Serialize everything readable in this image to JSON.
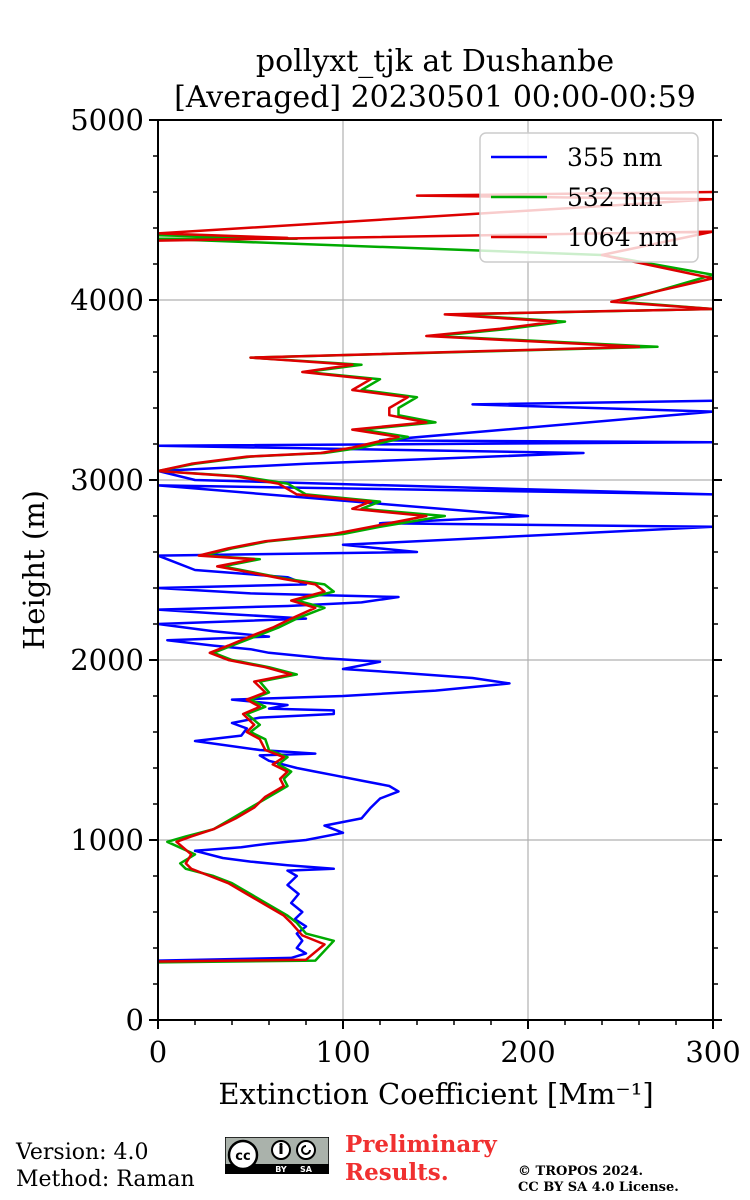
{
  "chart_data": {
    "type": "line",
    "title": "pollyxt_tjk at Dushanbe",
    "subtitle": "[Averaged] 20230501 00:00-00:59",
    "xlabel": "Extinction Coefficient [Mm⁻¹]",
    "ylabel": "Height (m)",
    "xlim": [
      0,
      300
    ],
    "ylim": [
      0,
      5000
    ],
    "xticks": [
      "0",
      "100",
      "200",
      "300"
    ],
    "yticks": [
      "0",
      "1000",
      "2000",
      "3000",
      "4000",
      "5000"
    ],
    "grid": true,
    "legend_position": "top-right",
    "series": [
      {
        "name": "355 nm",
        "color": "#0000ff",
        "points": [
          [
            0,
            330
          ],
          [
            72,
            345
          ],
          [
            80,
            370
          ],
          [
            75,
            400
          ],
          [
            78,
            440
          ],
          [
            75,
            480
          ],
          [
            80,
            520
          ],
          [
            74,
            560
          ],
          [
            78,
            600
          ],
          [
            72,
            650
          ],
          [
            76,
            700
          ],
          [
            70,
            750
          ],
          [
            75,
            800
          ],
          [
            70,
            830
          ],
          [
            95,
            840
          ],
          [
            70,
            860
          ],
          [
            50,
            880
          ],
          [
            35,
            900
          ],
          [
            20,
            940
          ],
          [
            45,
            960
          ],
          [
            60,
            980
          ],
          [
            80,
            1000
          ],
          [
            100,
            1040
          ],
          [
            90,
            1080
          ],
          [
            110,
            1120
          ],
          [
            115,
            1180
          ],
          [
            120,
            1230
          ],
          [
            130,
            1270
          ],
          [
            125,
            1300
          ],
          [
            110,
            1330
          ],
          [
            95,
            1360
          ],
          [
            85,
            1380
          ],
          [
            75,
            1400
          ],
          [
            60,
            1440
          ],
          [
            55,
            1470
          ],
          [
            85,
            1480
          ],
          [
            55,
            1500
          ],
          [
            20,
            1550
          ],
          [
            45,
            1580
          ],
          [
            48,
            1620
          ],
          [
            40,
            1650
          ],
          [
            55,
            1680
          ],
          [
            95,
            1700
          ],
          [
            95,
            1720
          ],
          [
            60,
            1730
          ],
          [
            70,
            1750
          ],
          [
            40,
            1780
          ],
          [
            100,
            1800
          ],
          [
            150,
            1830
          ],
          [
            190,
            1870
          ],
          [
            170,
            1900
          ],
          [
            130,
            1930
          ],
          [
            100,
            1950
          ],
          [
            120,
            1990
          ],
          [
            90,
            2010
          ],
          [
            60,
            2040
          ],
          [
            50,
            2060
          ],
          [
            30,
            2080
          ],
          [
            5,
            2110
          ],
          [
            60,
            2130
          ],
          [
            30,
            2160
          ],
          [
            15,
            2180
          ],
          [
            0,
            2200
          ],
          [
            80,
            2230
          ],
          [
            30,
            2260
          ],
          [
            0,
            2280
          ],
          [
            70,
            2300
          ],
          [
            110,
            2320
          ],
          [
            130,
            2350
          ],
          [
            50,
            2370
          ],
          [
            0,
            2400
          ],
          [
            80,
            2420
          ],
          [
            70,
            2460
          ],
          [
            20,
            2500
          ],
          [
            0,
            2580
          ],
          [
            140,
            2600
          ],
          [
            100,
            2640
          ],
          [
            300,
            2740
          ],
          [
            120,
            2760
          ],
          [
            200,
            2800
          ],
          [
            0,
            2970
          ],
          [
            300,
            2920
          ],
          [
            20,
            3000
          ],
          [
            0,
            3050
          ],
          [
            80,
            3090
          ],
          [
            230,
            3150
          ],
          [
            0,
            3190
          ],
          [
            300,
            3210
          ],
          [
            120,
            3220
          ],
          [
            300,
            3380
          ],
          [
            170,
            3420
          ],
          [
            300,
            3440
          ]
        ]
      },
      {
        "name": "532 nm",
        "color": "#00aa00",
        "points": [
          [
            0,
            320
          ],
          [
            85,
            330
          ],
          [
            95,
            440
          ],
          [
            80,
            480
          ],
          [
            75,
            540
          ],
          [
            70,
            580
          ],
          [
            60,
            640
          ],
          [
            50,
            700
          ],
          [
            40,
            760
          ],
          [
            30,
            800
          ],
          [
            15,
            840
          ],
          [
            12,
            870
          ],
          [
            20,
            920
          ],
          [
            5,
            990
          ],
          [
            15,
            1020
          ],
          [
            30,
            1060
          ],
          [
            40,
            1120
          ],
          [
            50,
            1180
          ],
          [
            60,
            1240
          ],
          [
            70,
            1300
          ],
          [
            68,
            1340
          ],
          [
            72,
            1380
          ],
          [
            65,
            1420
          ],
          [
            70,
            1460
          ],
          [
            60,
            1500
          ],
          [
            58,
            1560
          ],
          [
            50,
            1600
          ],
          [
            55,
            1640
          ],
          [
            48,
            1700
          ],
          [
            58,
            1740
          ],
          [
            50,
            1780
          ],
          [
            60,
            1820
          ],
          [
            55,
            1880
          ],
          [
            75,
            1920
          ],
          [
            60,
            1960
          ],
          [
            40,
            2000
          ],
          [
            30,
            2040
          ],
          [
            40,
            2080
          ],
          [
            55,
            2140
          ],
          [
            65,
            2180
          ],
          [
            75,
            2230
          ],
          [
            90,
            2290
          ],
          [
            75,
            2330
          ],
          [
            95,
            2380
          ],
          [
            90,
            2420
          ],
          [
            70,
            2450
          ],
          [
            50,
            2490
          ],
          [
            35,
            2520
          ],
          [
            55,
            2560
          ],
          [
            25,
            2580
          ],
          [
            40,
            2620
          ],
          [
            60,
            2660
          ],
          [
            100,
            2700
          ],
          [
            120,
            2740
          ],
          [
            155,
            2800
          ],
          [
            110,
            2840
          ],
          [
            120,
            2880
          ],
          [
            80,
            2920
          ],
          [
            70,
            2980
          ],
          [
            45,
            3020
          ],
          [
            0,
            3050
          ],
          [
            20,
            3090
          ],
          [
            50,
            3130
          ],
          [
            90,
            3150
          ],
          [
            110,
            3180
          ],
          [
            135,
            3240
          ],
          [
            110,
            3280
          ],
          [
            150,
            3320
          ],
          [
            130,
            3360
          ],
          [
            130,
            3400
          ],
          [
            140,
            3460
          ],
          [
            110,
            3500
          ],
          [
            120,
            3560
          ],
          [
            80,
            3600
          ],
          [
            110,
            3640
          ],
          [
            50,
            3680
          ],
          [
            270,
            3740
          ],
          [
            150,
            3800
          ],
          [
            190,
            3840
          ],
          [
            220,
            3880
          ],
          [
            160,
            3920
          ],
          [
            300,
            3950
          ],
          [
            250,
            3990
          ],
          [
            300,
            4140
          ],
          [
            240,
            4250
          ],
          [
            0,
            4340
          ],
          [
            75,
            4340
          ],
          [
            0,
            4360
          ]
        ]
      },
      {
        "name": "1064 nm",
        "color": "#dd0000",
        "points": [
          [
            0,
            325
          ],
          [
            80,
            335
          ],
          [
            90,
            420
          ],
          [
            78,
            470
          ],
          [
            72,
            540
          ],
          [
            68,
            580
          ],
          [
            58,
            640
          ],
          [
            48,
            700
          ],
          [
            38,
            760
          ],
          [
            28,
            800
          ],
          [
            18,
            840
          ],
          [
            15,
            870
          ],
          [
            18,
            920
          ],
          [
            10,
            990
          ],
          [
            18,
            1020
          ],
          [
            30,
            1060
          ],
          [
            42,
            1120
          ],
          [
            52,
            1180
          ],
          [
            58,
            1240
          ],
          [
            68,
            1300
          ],
          [
            66,
            1340
          ],
          [
            70,
            1380
          ],
          [
            62,
            1420
          ],
          [
            68,
            1460
          ],
          [
            58,
            1500
          ],
          [
            55,
            1560
          ],
          [
            48,
            1600
          ],
          [
            52,
            1640
          ],
          [
            46,
            1700
          ],
          [
            55,
            1740
          ],
          [
            48,
            1780
          ],
          [
            58,
            1820
          ],
          [
            52,
            1880
          ],
          [
            72,
            1920
          ],
          [
            58,
            1960
          ],
          [
            38,
            2000
          ],
          [
            28,
            2040
          ],
          [
            38,
            2080
          ],
          [
            52,
            2140
          ],
          [
            62,
            2180
          ],
          [
            72,
            2230
          ],
          [
            85,
            2290
          ],
          [
            72,
            2330
          ],
          [
            90,
            2380
          ],
          [
            85,
            2420
          ],
          [
            68,
            2450
          ],
          [
            48,
            2490
          ],
          [
            32,
            2520
          ],
          [
            52,
            2560
          ],
          [
            22,
            2580
          ],
          [
            38,
            2620
          ],
          [
            58,
            2660
          ],
          [
            95,
            2700
          ],
          [
            115,
            2740
          ],
          [
            145,
            2800
          ],
          [
            105,
            2840
          ],
          [
            115,
            2880
          ],
          [
            75,
            2920
          ],
          [
            65,
            2980
          ],
          [
            42,
            3020
          ],
          [
            0,
            3050
          ],
          [
            18,
            3090
          ],
          [
            48,
            3130
          ],
          [
            88,
            3150
          ],
          [
            105,
            3180
          ],
          [
            130,
            3240
          ],
          [
            105,
            3280
          ],
          [
            145,
            3320
          ],
          [
            125,
            3360
          ],
          [
            125,
            3400
          ],
          [
            135,
            3460
          ],
          [
            105,
            3500
          ],
          [
            115,
            3560
          ],
          [
            78,
            3600
          ],
          [
            105,
            3640
          ],
          [
            50,
            3680
          ],
          [
            260,
            3740
          ],
          [
            145,
            3800
          ],
          [
            185,
            3840
          ],
          [
            215,
            3880
          ],
          [
            155,
            3920
          ],
          [
            300,
            3950
          ],
          [
            245,
            3990
          ],
          [
            300,
            4120
          ],
          [
            240,
            4250
          ],
          [
            300,
            4380
          ],
          [
            0,
            4330
          ],
          [
            70,
            4345
          ],
          [
            0,
            4370
          ],
          [
            300,
            4560
          ],
          [
            140,
            4580
          ],
          [
            300,
            4600
          ]
        ]
      }
    ]
  },
  "footer": {
    "version": "Version: 4.0",
    "method": "Method: Raman",
    "preliminary_line1": "Preliminary",
    "preliminary_line2": "Results.",
    "copyright_line1": "© TROPOS 2024.",
    "copyright_line2": "CC BY SA 4.0 License.",
    "license_badge": [
      "BY",
      "SA"
    ]
  }
}
